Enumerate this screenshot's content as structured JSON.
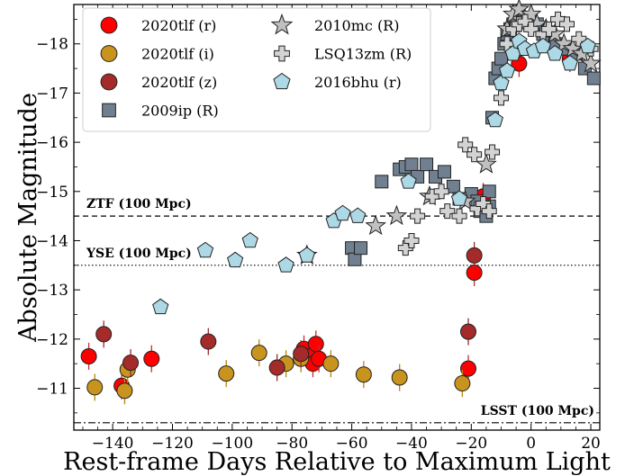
{
  "chart_data": {
    "type": "scatter",
    "xlabel": "Rest-frame Days Relative to Maximum Light",
    "ylabel": "Absolute Magnitude",
    "xlim": [
      -153,
      23
    ],
    "ylim": [
      -10.15,
      -18.8
    ],
    "y_inverted": true,
    "x_ticks": [
      -140,
      -120,
      -100,
      -80,
      -60,
      -40,
      -20,
      0,
      20
    ],
    "y_ticks": [
      -11,
      -12,
      -13,
      -14,
      -15,
      -16,
      -17,
      -18
    ],
    "legend_position": "top-left",
    "reference_lines": [
      {
        "label": "ZTF (100 Mpc)",
        "y": -14.5,
        "style": "dashed"
      },
      {
        "label": "YSE (100 Mpc)",
        "y": -13.5,
        "style": "dotted"
      },
      {
        "label": "LSST (100 Mpc)",
        "y": -10.3,
        "style": "dashdot"
      }
    ],
    "series": [
      {
        "name": "2020tlf (r)",
        "marker": "circle",
        "color": "#ff0000",
        "points": [
          [
            -148,
            -11.65
          ],
          [
            -137,
            -11.05
          ],
          [
            -127,
            -11.6
          ],
          [
            -76,
            -11.8
          ],
          [
            -74,
            -11.65
          ],
          [
            -73,
            -11.5
          ],
          [
            -72,
            -11.9
          ],
          [
            -71,
            -11.6
          ],
          [
            -19,
            -13.35
          ],
          [
            -16,
            -14.9
          ],
          [
            -21,
            -11.4
          ],
          [
            -4,
            -17.6
          ],
          [
            13,
            -17.7
          ]
        ]
      },
      {
        "name": "2020tlf (i)",
        "marker": "circle",
        "color": "#c8941e",
        "points": [
          [
            -146,
            -11.02
          ],
          [
            -136,
            -10.95
          ],
          [
            -135,
            -11.38
          ],
          [
            -102,
            -11.3
          ],
          [
            -91,
            -11.72
          ],
          [
            -82,
            -11.5
          ],
          [
            -77,
            -11.6
          ],
          [
            -67,
            -11.5
          ],
          [
            -56,
            -11.28
          ],
          [
            -44,
            -11.22
          ],
          [
            -23,
            -11.1
          ]
        ]
      },
      {
        "name": "2020tlf (z)",
        "marker": "circle",
        "color": "#a52a2a",
        "points": [
          [
            -143,
            -12.1
          ],
          [
            -134,
            -11.52
          ],
          [
            -108,
            -11.95
          ],
          [
            -85,
            -11.42
          ],
          [
            -77,
            -11.7
          ],
          [
            -21,
            -12.15
          ],
          [
            -19,
            -13.7
          ]
        ]
      },
      {
        "name": "2009ip (R)",
        "marker": "square",
        "color": "#708090",
        "points": [
          [
            -60,
            -13.85
          ],
          [
            -59,
            -13.62
          ],
          [
            -57,
            -13.85
          ],
          [
            -50,
            -15.2
          ],
          [
            -44,
            -15.45
          ],
          [
            -42,
            -15.5
          ],
          [
            -40,
            -15.55
          ],
          [
            -38,
            -15.3
          ],
          [
            -35,
            -15.55
          ],
          [
            -32,
            -15.3
          ],
          [
            -29,
            -15.4
          ],
          [
            -26,
            -15.1
          ],
          [
            -24,
            -14.85
          ],
          [
            -20,
            -14.95
          ],
          [
            -18,
            -14.8
          ],
          [
            -17,
            -14.6
          ],
          [
            -15,
            -14.5
          ],
          [
            -14,
            -14.7
          ],
          [
            -14,
            -15.0
          ],
          [
            -13,
            -16.5
          ],
          [
            -12,
            -17.3
          ],
          [
            -11,
            -17.5
          ],
          [
            -10,
            -17.7
          ],
          [
            -9,
            -18.0
          ],
          [
            -8,
            -18.2
          ],
          [
            -7,
            -18.3
          ],
          [
            -6,
            -18.4
          ],
          [
            -5,
            -18.5
          ],
          [
            -3,
            -18.5
          ],
          [
            0,
            -18.4
          ],
          [
            2,
            -18.4
          ],
          [
            4,
            -18.2
          ],
          [
            6,
            -18.1
          ],
          [
            8,
            -18.0
          ],
          [
            12,
            -17.9
          ],
          [
            15,
            -17.8
          ],
          [
            18,
            -17.5
          ],
          [
            21,
            -17.3
          ]
        ]
      },
      {
        "name": "2010mc (R)",
        "marker": "star",
        "color": "#c0c0c0",
        "points": [
          [
            -75,
            -13.7
          ],
          [
            -52,
            -14.3
          ],
          [
            -45,
            -14.5
          ],
          [
            -34,
            -14.9
          ],
          [
            -22,
            -14.8
          ],
          [
            -15,
            -15.55
          ],
          [
            -8,
            -18.3
          ],
          [
            -6,
            -18.6
          ],
          [
            -4,
            -18.7
          ],
          [
            -2,
            -18.5
          ],
          [
            0,
            -18.6
          ],
          [
            2,
            -18.4
          ],
          [
            5,
            -18.3
          ],
          [
            8,
            -18.2
          ],
          [
            11,
            -18.0
          ],
          [
            14,
            -17.9
          ],
          [
            17,
            -17.8
          ],
          [
            20,
            -17.6
          ]
        ]
      },
      {
        "name": "LSQ13zm (R)",
        "marker": "plus",
        "color": "#d3d3d3",
        "points": [
          [
            -42,
            -13.85
          ],
          [
            -40,
            -14.0
          ],
          [
            -38,
            -14.5
          ],
          [
            -33,
            -14.9
          ],
          [
            -30,
            -15.0
          ],
          [
            -28,
            -14.6
          ],
          [
            -24,
            -14.5
          ],
          [
            -22,
            -15.95
          ],
          [
            -19,
            -15.75
          ],
          [
            -18,
            -14.65
          ],
          [
            -16,
            -14.75
          ],
          [
            -14,
            -14.6
          ],
          [
            -13,
            -15.8
          ],
          [
            -10,
            -16.9
          ],
          [
            -8,
            -18.0
          ],
          [
            -6,
            -18.3
          ],
          [
            -4,
            -18.4
          ],
          [
            -2,
            -18.45
          ],
          [
            0,
            -18.3
          ],
          [
            4,
            -18.2
          ],
          [
            6,
            -18.3
          ],
          [
            9,
            -18.5
          ],
          [
            12,
            -18.4
          ],
          [
            16,
            -18.1
          ],
          [
            20,
            -17.9
          ]
        ]
      },
      {
        "name": "2016bhu (r)",
        "marker": "pentagon",
        "color": "#add8e6",
        "points": [
          [
            -124,
            -12.65
          ],
          [
            -109,
            -13.8
          ],
          [
            -99,
            -13.6
          ],
          [
            -94,
            -14.0
          ],
          [
            -82,
            -13.5
          ],
          [
            -75,
            -13.7
          ],
          [
            -66,
            -14.4
          ],
          [
            -63,
            -14.55
          ],
          [
            -58,
            -14.5
          ],
          [
            -41,
            -15.2
          ],
          [
            -24,
            -14.85
          ],
          [
            -12,
            -16.45
          ],
          [
            -10,
            -17.2
          ],
          [
            -8,
            -17.45
          ],
          [
            -6,
            -17.8
          ],
          [
            -4,
            -18.05
          ],
          [
            -2,
            -17.9
          ],
          [
            1,
            -17.85
          ],
          [
            4,
            -17.95
          ],
          [
            8,
            -17.8
          ],
          [
            13,
            -17.6
          ],
          [
            19,
            -17.95
          ]
        ]
      }
    ]
  }
}
